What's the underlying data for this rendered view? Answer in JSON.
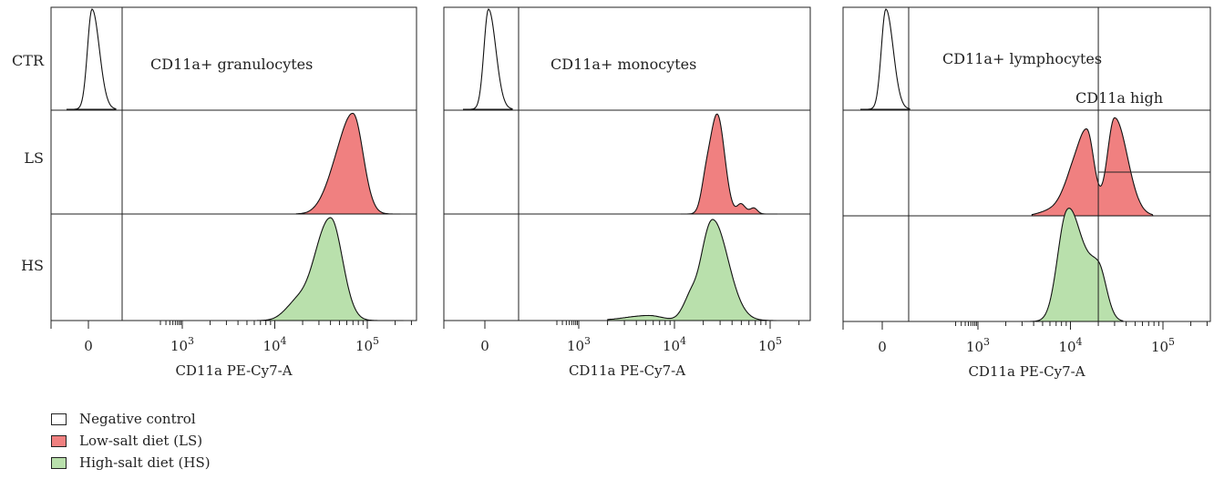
{
  "chart_data": {
    "type": "histogram",
    "row_labels": [
      "CTR",
      "LS",
      "HS"
    ],
    "x_axis": {
      "label": "CD11a PE-Cy7-A",
      "scale": "biexponential",
      "ticks": [
        {
          "value": "0",
          "label_base": "0",
          "label_exp": ""
        },
        {
          "value": "1000",
          "label_base": "10",
          "label_exp": "3"
        },
        {
          "value": "10000",
          "label_base": "10",
          "label_exp": "4"
        },
        {
          "value": "100000",
          "label_base": "10",
          "label_exp": "5"
        }
      ]
    },
    "panels": [
      {
        "title": "CD11a+ granulocytes",
        "xlabel": "CD11a PE-Cy7-A",
        "gate_label": "",
        "series": {
          "control_peak": 0,
          "LS_peak": 70000,
          "HS_peak": 40000
        }
      },
      {
        "title": "CD11a+ monocytes",
        "xlabel": "CD11a PE-Cy7-A",
        "gate_label": "",
        "series": {
          "control_peak": 0,
          "LS_peak": 28000,
          "HS_peak": 25000
        }
      },
      {
        "title": "CD11a+ lymphocytes",
        "xlabel": "CD11a PE-Cy7-A",
        "gate_label": "CD11a high",
        "series": {
          "control_peak": 0,
          "LS_peaks": [
            15000,
            30000
          ],
          "HS_peak": 9000
        }
      }
    ],
    "legend": [
      {
        "label": "Negative control",
        "color": "#ffffff"
      },
      {
        "label": "Low-salt diet (LS)",
        "color": "#f08080"
      },
      {
        "label": "High-salt diet (HS)",
        "color": "#b9e0ac"
      }
    ]
  }
}
